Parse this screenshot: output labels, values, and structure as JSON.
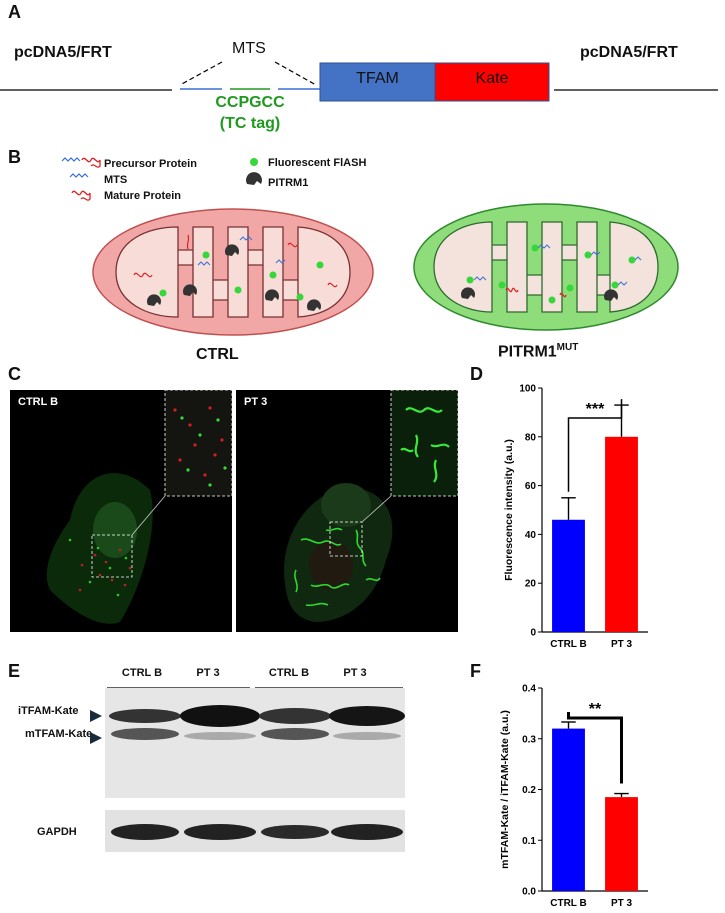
{
  "panels": {
    "A": {
      "letter": "A",
      "left_label": "pcDNA5/FRT",
      "right_label": "pcDNA5/FRT",
      "mts_label": "MTS",
      "tag_seq": "CCPGCC",
      "tag_name": "(TC tag)",
      "tfam_label": "TFAM",
      "kate_label": "Kate",
      "colors": {
        "tfam": "#4472c4",
        "kate": "#ff0000",
        "tag": "#1e9a1e",
        "mts_line": "#3a6fd8"
      }
    },
    "B": {
      "letter": "B",
      "legend": [
        {
          "label": "Precursor Protein",
          "icon": "precursor-protein-icon"
        },
        {
          "label": "MTS",
          "icon": "mts-icon"
        },
        {
          "label": "Mature Protein",
          "icon": "mature-protein-icon"
        },
        {
          "label": "Fluorescent FlASH",
          "icon": "green-dot-icon"
        },
        {
          "label": "PITRM1",
          "icon": "pitrm1-icon"
        }
      ],
      "ctrl_label": "CTRL",
      "mut_label": "PITRM1",
      "mut_superscript": "MUT",
      "colors": {
        "ctrl_outer": "#f2a7a7",
        "ctrl_inner": "#f7dcd8",
        "mut_outer": "#8fdc7a",
        "mut_inner": "#f3e3dc"
      }
    },
    "C": {
      "letter": "C",
      "image_labels": [
        "CTRL B",
        "PT 3"
      ]
    },
    "E": {
      "letter": "E",
      "lanes": [
        "CTRL B",
        "PT 3",
        "CTRL B",
        "PT 3"
      ],
      "band_labels": [
        "iTFAM-Kate",
        "mTFAM-Kate"
      ],
      "loading_label": "GAPDH"
    }
  },
  "chart_data": [
    {
      "id": "D",
      "letter": "D",
      "type": "bar",
      "categories": [
        "CTRL B",
        "PT 3"
      ],
      "values": [
        46,
        80
      ],
      "errors": [
        9,
        13
      ],
      "colors": [
        "#0000ff",
        "#ff0000"
      ],
      "ylabel": "Fluorescence intensity (a.u.)",
      "xlabel": "",
      "ylim": [
        0,
        100
      ],
      "yticks": [
        0,
        20,
        40,
        60,
        80,
        100
      ],
      "significance": "***"
    },
    {
      "id": "F",
      "letter": "F",
      "type": "bar",
      "categories": [
        "CTRL B",
        "PT 3"
      ],
      "values": [
        0.32,
        0.185
      ],
      "errors": [
        0.013,
        0.007
      ],
      "colors": [
        "#0000ff",
        "#ff0000"
      ],
      "ylabel": "mTFAM-Kate / iTFAM-Kate (a.u.)",
      "xlabel": "",
      "ylim": [
        0,
        0.4
      ],
      "yticks": [
        0.0,
        0.1,
        0.2,
        0.3,
        0.4
      ],
      "significance": "**"
    }
  ]
}
